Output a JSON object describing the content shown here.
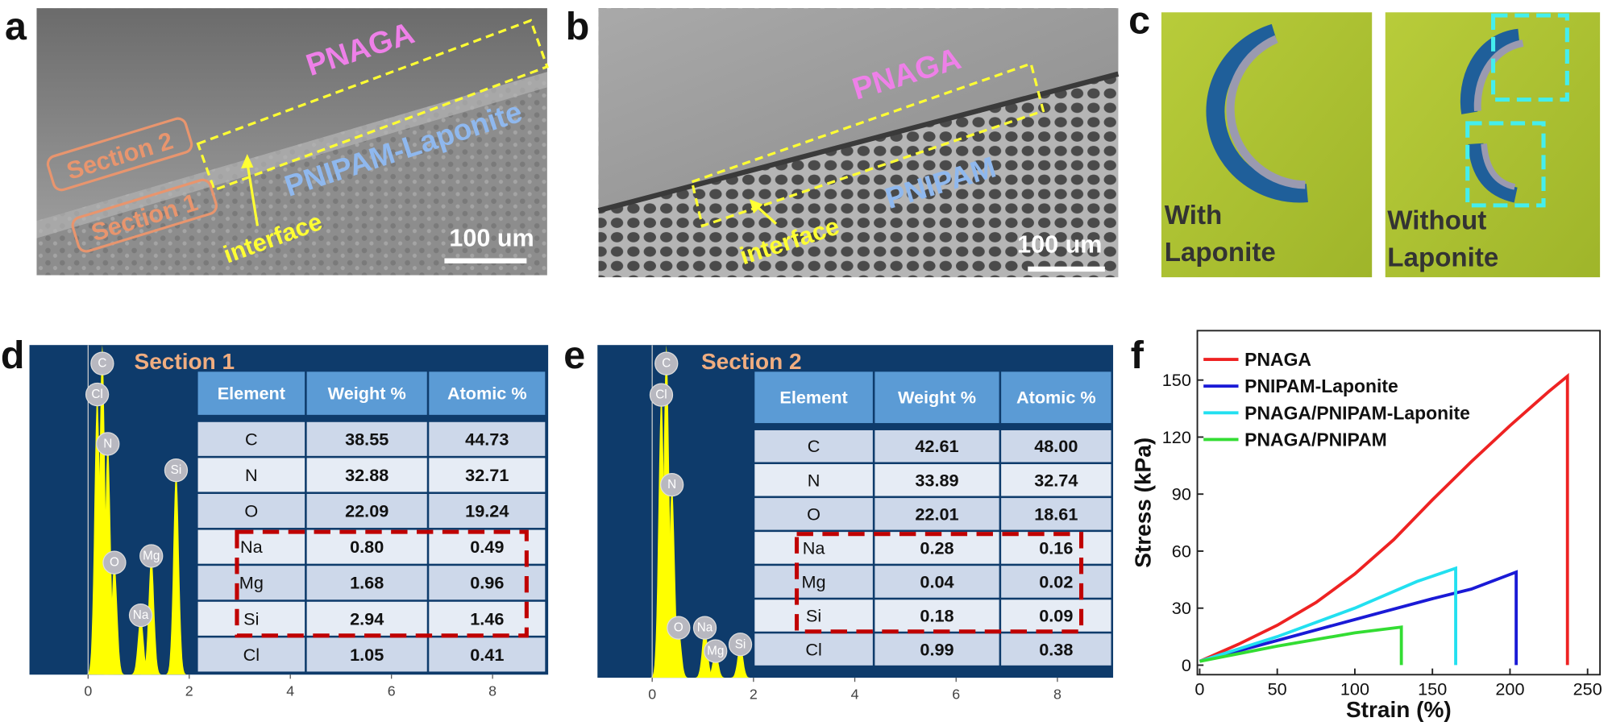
{
  "panel_labels": [
    "a",
    "b",
    "c",
    "d",
    "e",
    "f"
  ],
  "panel_a": {
    "top_layer": "PNAGA",
    "bottom_layer": "PNIPAM-Laponite",
    "sections": [
      "Section 2",
      "Section 1"
    ],
    "interface": "interface",
    "scale_bar": "100 um"
  },
  "panel_b": {
    "top_layer": "PNAGA",
    "bottom_layer": "PNIPAM",
    "interface": "interface",
    "scale_bar": "100 um"
  },
  "panel_c": {
    "left": [
      "With",
      "Laponite"
    ],
    "right": [
      "Without",
      "Laponite"
    ]
  },
  "panel_d": {
    "section": "Section 1",
    "xlim": [
      -1.16,
      9.1
    ],
    "xticks": [
      0,
      2,
      4,
      6,
      8
    ],
    "ylim": [
      0,
      100
    ],
    "peaks": [
      {
        "label": "Cl",
        "x": 0.18,
        "height": 85
      },
      {
        "label": "C",
        "x": 0.28,
        "height": 100
      },
      {
        "label": "N",
        "x": 0.39,
        "height": 70
      },
      {
        "label": "O",
        "x": 0.52,
        "height": 34
      },
      {
        "label": "Na",
        "x": 1.04,
        "height": 18
      },
      {
        "label": "Mg",
        "x": 1.25,
        "height": 36
      },
      {
        "label": "Si",
        "x": 1.74,
        "height": 62
      }
    ],
    "table": {
      "header": [
        "Element",
        "Weight %",
        "Atomic %"
      ],
      "rows": [
        [
          "C",
          "38.55",
          "44.73"
        ],
        [
          "N",
          "32.88",
          "32.71"
        ],
        [
          "O",
          "22.09",
          "19.24"
        ],
        [
          "Na",
          "0.80",
          "0.49"
        ],
        [
          "Mg",
          "1.68",
          "0.96"
        ],
        [
          "Si",
          "2.94",
          "1.46"
        ],
        [
          "Cl",
          "1.05",
          "0.41"
        ]
      ]
    }
  },
  "panel_e": {
    "section": "Section 2",
    "xlim": [
      -1.08,
      9.1
    ],
    "xticks": [
      0,
      2,
      4,
      6,
      8
    ],
    "ylim": [
      0,
      100
    ],
    "peaks": [
      {
        "label": "Cl",
        "x": 0.18,
        "height": 85
      },
      {
        "label": "C",
        "x": 0.28,
        "height": 100
      },
      {
        "label": "N",
        "x": 0.39,
        "height": 58
      },
      {
        "label": "O",
        "x": 0.52,
        "height": 15
      },
      {
        "label": "Na",
        "x": 1.04,
        "height": 15
      },
      {
        "label": "Mg",
        "x": 1.25,
        "height": 8
      },
      {
        "label": "Si",
        "x": 1.74,
        "height": 10
      }
    ],
    "table": {
      "header": [
        "Element",
        "Weight %",
        "Atomic %"
      ],
      "rows": [
        [
          "C",
          "42.61",
          "48.00"
        ],
        [
          "N",
          "33.89",
          "32.74"
        ],
        [
          "O",
          "22.01",
          "18.61"
        ],
        [
          "Na",
          "0.28",
          "0.16"
        ],
        [
          "Mg",
          "0.04",
          "0.02"
        ],
        [
          "Si",
          "0.18",
          "0.09"
        ],
        [
          "Cl",
          "0.99",
          "0.38"
        ]
      ]
    }
  },
  "chart_data": {
    "type": "line",
    "x_label": "Strain (%)",
    "y_label": "Stress (kPa)",
    "xlim": [
      -1.5,
      258
    ],
    "ylim": [
      -5,
      176
    ],
    "xticks": [
      0,
      50,
      100,
      150,
      200,
      250
    ],
    "yticks": [
      0,
      30,
      60,
      90,
      120,
      150
    ],
    "legend": "top-left",
    "series": [
      {
        "name": "PNAGA",
        "color": "#ee2222",
        "x": [
          0,
          25,
          50,
          75,
          100,
          125,
          150,
          175,
          200,
          225,
          237,
          237
        ],
        "values": [
          2,
          11,
          21,
          33,
          48,
          66,
          87,
          107,
          126,
          144,
          152,
          0
        ]
      },
      {
        "name": "PNIPAM-Laponite",
        "color": "#1a1ad6",
        "x": [
          0,
          50,
          100,
          150,
          175,
          204,
          204
        ],
        "values": [
          2,
          13,
          24,
          35,
          40,
          49,
          0
        ]
      },
      {
        "name": "PNAGA/PNIPAM-Laponite",
        "color": "#22e0f0",
        "x": [
          0,
          50,
          100,
          140,
          165,
          165
        ],
        "values": [
          2,
          15,
          30,
          44,
          51,
          0
        ]
      },
      {
        "name": "PNAGA/PNIPAM",
        "color": "#33dd33",
        "x": [
          0,
          50,
          100,
          130,
          130
        ],
        "values": [
          2,
          10,
          17,
          20,
          0
        ]
      }
    ]
  }
}
